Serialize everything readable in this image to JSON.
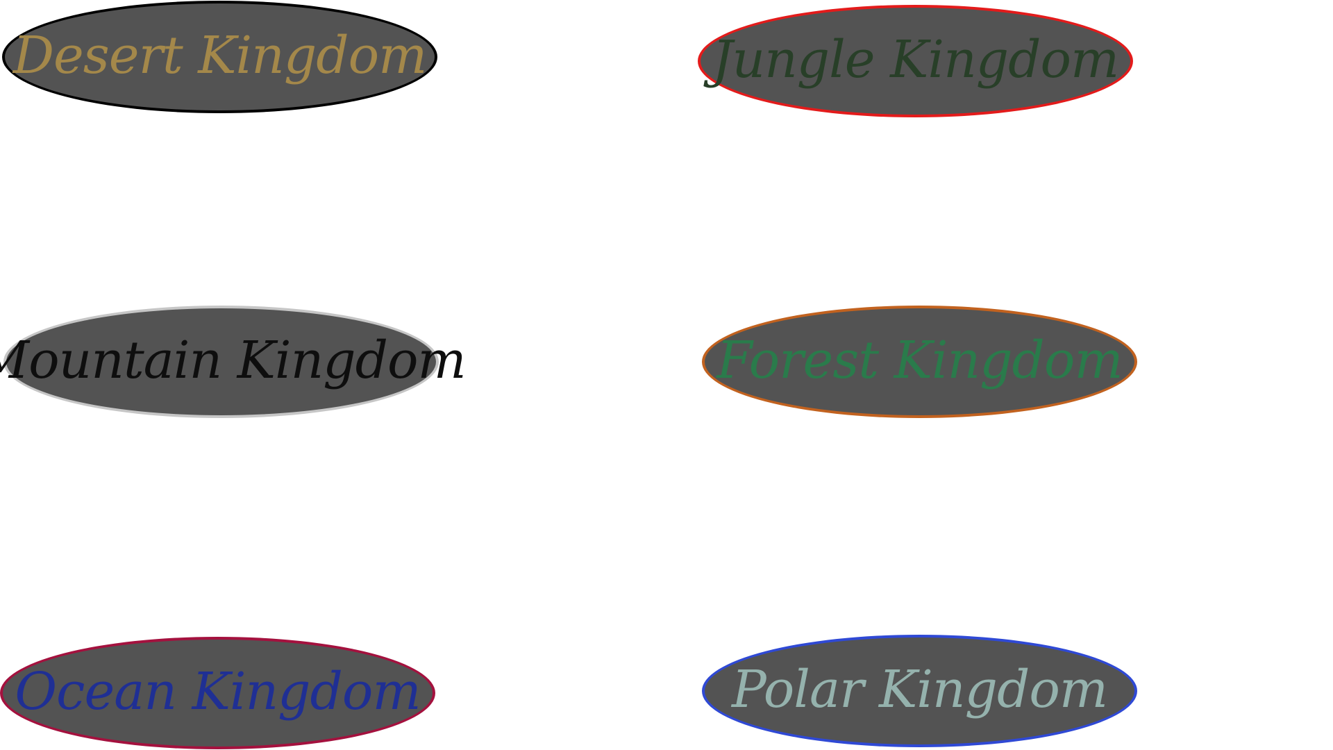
{
  "kingdoms": [
    {
      "id": "desert",
      "label": "Desert Kingdom",
      "text_color": "#a4884a",
      "border_color": "#000000",
      "fill_color": "#535353"
    },
    {
      "id": "jungle",
      "label": "Jungle Kingdom",
      "text_color": "#283f28",
      "border_color": "#e31b1b",
      "fill_color": "#535353"
    },
    {
      "id": "mountain",
      "label": "Mountain Kingdom",
      "text_color": "#0e0e0e",
      "border_color": "#c6c6c6",
      "fill_color": "#535353"
    },
    {
      "id": "forest",
      "label": "Forest Kingdom",
      "text_color": "#2a7b4b",
      "border_color": "#c2621f",
      "fill_color": "#535353"
    },
    {
      "id": "ocean",
      "label": "Ocean Kingdom",
      "text_color": "#1f2f94",
      "border_color": "#a4113e",
      "fill_color": "#535353"
    },
    {
      "id": "polar",
      "label": "Polar Kingdom",
      "text_color": "#95b2ad",
      "border_color": "#2f49d5",
      "fill_color": "#535353"
    }
  ]
}
